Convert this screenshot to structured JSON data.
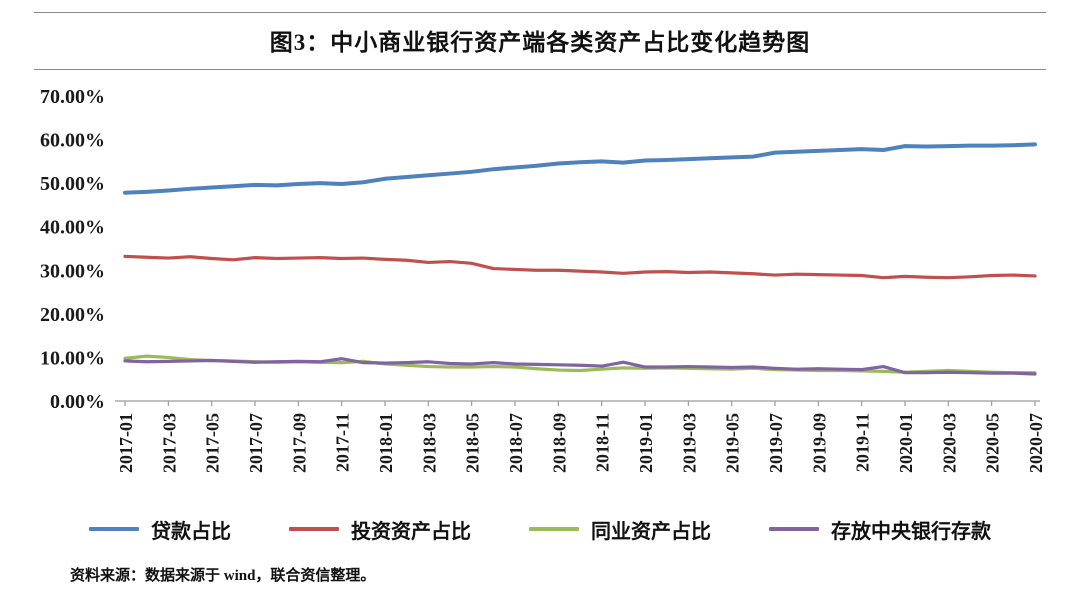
{
  "header": {
    "title": "图3：中小商业银行资产端各类资产占比变化趋势图"
  },
  "source_note": "资料来源：数据来源于 wind，联合资信整理。",
  "chart_data": {
    "type": "line",
    "title": "图3：中小商业银行资产端各类资产占比变化趋势图",
    "xlabel": "",
    "ylabel": "",
    "ylim": [
      0,
      70
    ],
    "grid": false,
    "legend_position": "bottom",
    "y_ticks": [
      "0.00%",
      "10.00%",
      "20.00%",
      "30.00%",
      "40.00%",
      "50.00%",
      "60.00%",
      "70.00%"
    ],
    "x_tick_every": 2,
    "x": [
      "2017-01",
      "2017-02",
      "2017-03",
      "2017-04",
      "2017-05",
      "2017-06",
      "2017-07",
      "2017-08",
      "2017-09",
      "2017-10",
      "2017-11",
      "2017-12",
      "2018-01",
      "2018-02",
      "2018-03",
      "2018-04",
      "2018-05",
      "2018-06",
      "2018-07",
      "2018-08",
      "2018-09",
      "2018-10",
      "2018-11",
      "2018-12",
      "2019-01",
      "2019-02",
      "2019-03",
      "2019-04",
      "2019-05",
      "2019-06",
      "2019-07",
      "2019-08",
      "2019-09",
      "2019-10",
      "2019-11",
      "2019-12",
      "2020-01",
      "2020-02",
      "2020-03",
      "2020-04",
      "2020-05",
      "2020-06",
      "2020-07"
    ],
    "series": [
      {
        "name": "贷款占比",
        "color": "#4F81BD",
        "values": [
          47.8,
          48.0,
          48.3,
          48.7,
          49.0,
          49.3,
          49.6,
          49.5,
          49.8,
          50.0,
          49.8,
          50.2,
          51.0,
          51.4,
          51.8,
          52.2,
          52.6,
          53.2,
          53.6,
          54.0,
          54.5,
          54.8,
          55.0,
          54.7,
          55.2,
          55.3,
          55.5,
          55.7,
          55.9,
          56.1,
          57.0,
          57.2,
          57.4,
          57.6,
          57.8,
          57.6,
          58.5,
          58.4,
          58.5,
          58.6,
          58.6,
          58.7,
          58.9
        ]
      },
      {
        "name": "投资资产占比",
        "color": "#C0504D",
        "values": [
          33.2,
          33.0,
          32.8,
          33.1,
          32.7,
          32.4,
          32.9,
          32.7,
          32.8,
          32.9,
          32.7,
          32.8,
          32.5,
          32.3,
          31.8,
          32.0,
          31.6,
          30.4,
          30.2,
          30.0,
          30.0,
          29.8,
          29.6,
          29.3,
          29.6,
          29.7,
          29.5,
          29.6,
          29.4,
          29.2,
          28.9,
          29.1,
          29.0,
          28.9,
          28.8,
          28.3,
          28.6,
          28.4,
          28.3,
          28.5,
          28.8,
          28.9,
          28.7
        ]
      },
      {
        "name": "同业资产占比",
        "color": "#9BBB59",
        "values": [
          9.8,
          10.3,
          10.0,
          9.5,
          9.3,
          9.2,
          9.0,
          8.9,
          9.0,
          8.9,
          8.8,
          9.1,
          8.5,
          8.2,
          7.9,
          7.8,
          7.8,
          7.9,
          7.8,
          7.4,
          7.1,
          7.0,
          7.3,
          7.6,
          7.5,
          7.6,
          7.5,
          7.4,
          7.3,
          7.5,
          7.2,
          7.1,
          7.0,
          7.0,
          6.9,
          6.8,
          6.6,
          6.8,
          7.0,
          6.8,
          6.6,
          6.5,
          6.5
        ]
      },
      {
        "name": "存放中央银行存款",
        "color": "#8064A2",
        "values": [
          9.2,
          9.0,
          9.1,
          9.2,
          9.3,
          9.1,
          8.9,
          9.0,
          9.1,
          9.0,
          9.7,
          8.8,
          8.7,
          8.8,
          9.0,
          8.6,
          8.5,
          8.8,
          8.5,
          8.4,
          8.3,
          8.2,
          8.0,
          8.9,
          7.8,
          7.8,
          7.9,
          7.8,
          7.7,
          7.8,
          7.5,
          7.3,
          7.4,
          7.3,
          7.2,
          7.9,
          6.5,
          6.5,
          6.6,
          6.5,
          6.4,
          6.4,
          6.2
        ]
      }
    ]
  }
}
